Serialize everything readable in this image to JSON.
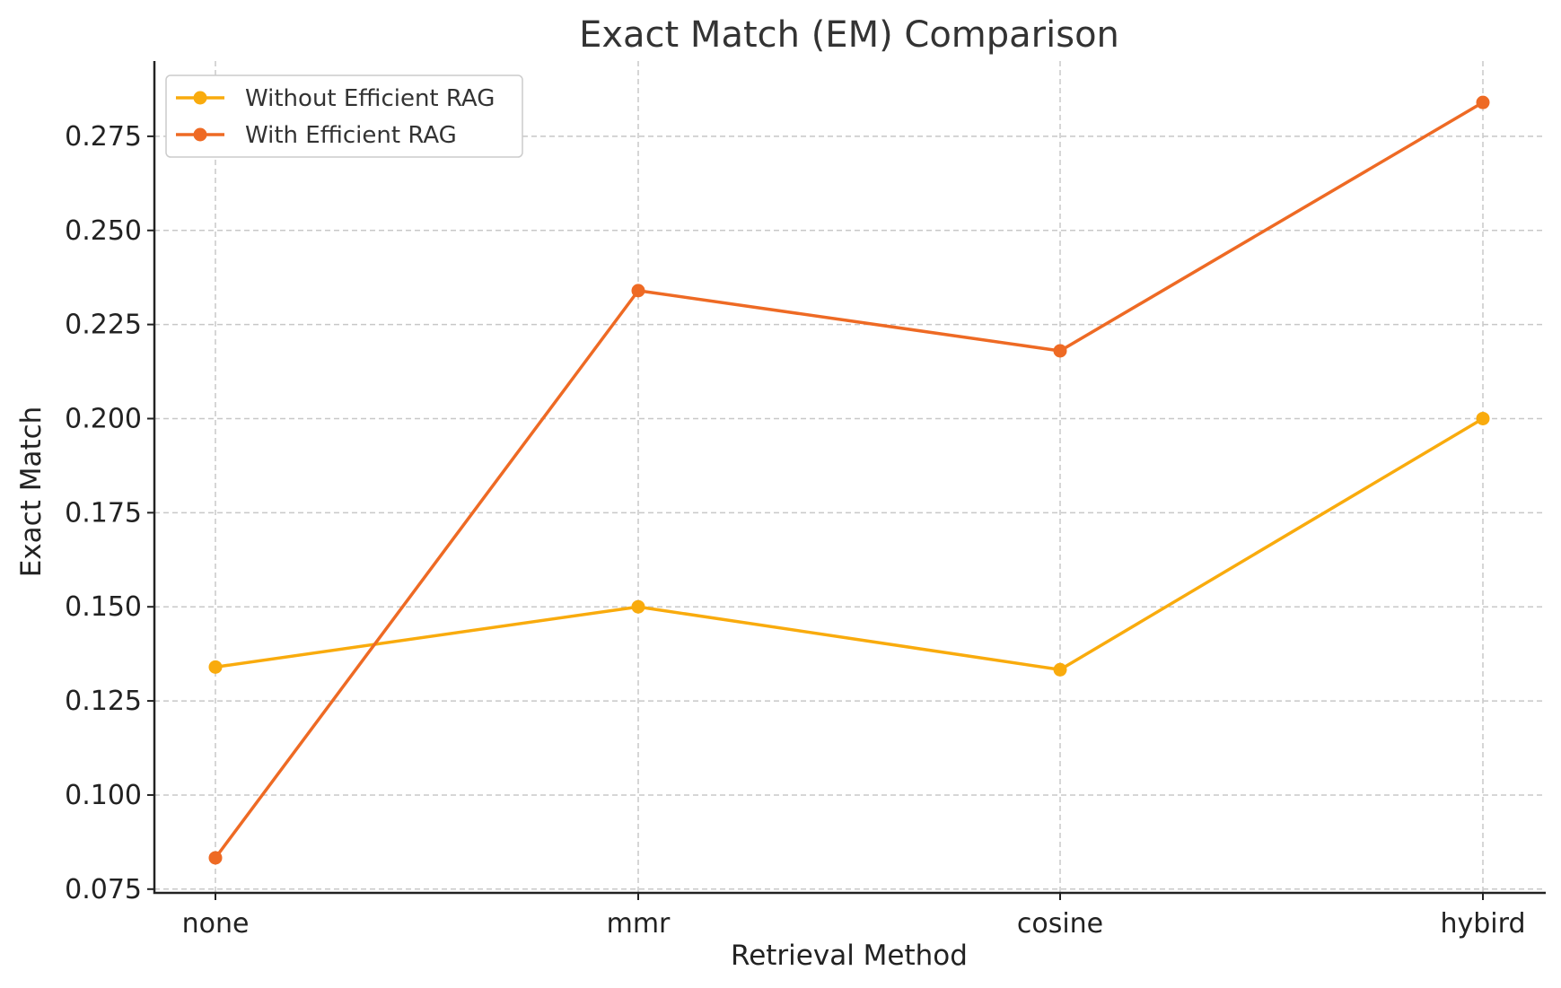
{
  "chart_data": {
    "type": "line",
    "title": "Exact Match (EM) Comparison",
    "xlabel": "Retrieval Method",
    "ylabel": "Exact Match",
    "categories": [
      "none",
      "mmr",
      "cosine",
      "hybird"
    ],
    "ylim": [
      0.074,
      0.295
    ],
    "yticks": [
      0.075,
      0.1,
      0.125,
      0.15,
      0.175,
      0.2,
      0.225,
      0.25,
      0.275
    ],
    "ytick_labels": [
      "0.075",
      "0.100",
      "0.125",
      "0.150",
      "0.175",
      "0.200",
      "0.225",
      "0.250",
      "0.275"
    ],
    "grid": true,
    "legend_position": "top-left",
    "series": [
      {
        "name": "Without Efficient RAG",
        "color": "#F9AB0D",
        "values": [
          0.134,
          0.15,
          0.1333,
          0.2
        ]
      },
      {
        "name": "With Efficient RAG",
        "color": "#EE6A24",
        "values": [
          0.0833,
          0.234,
          0.218,
          0.284
        ]
      }
    ]
  }
}
